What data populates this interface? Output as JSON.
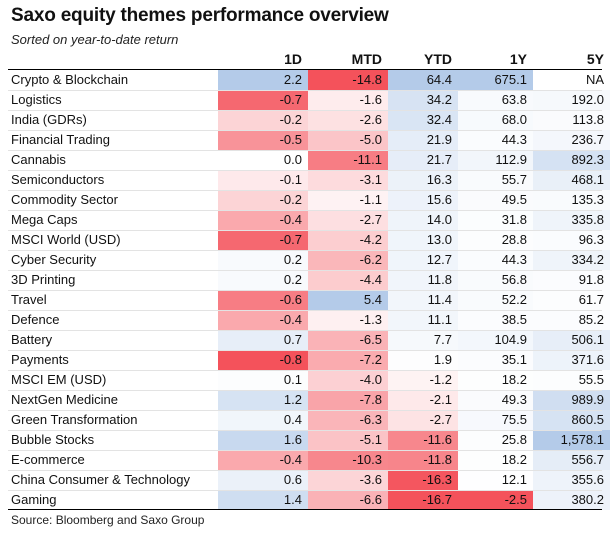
{
  "chart_data": {
    "type": "table",
    "title": "Saxo equity themes performance overview",
    "subtitle": "Sorted on year-to-date return",
    "columns": [
      "1D",
      "MTD",
      "YTD",
      "1Y",
      "5Y"
    ],
    "rows": [
      {
        "name": "Crypto & Blockchain",
        "values": [
          "2.2",
          "-14.8",
          "64.4",
          "675.1",
          "NA"
        ]
      },
      {
        "name": "Logistics",
        "values": [
          "-0.7",
          "-1.6",
          "34.2",
          "63.8",
          "192.0"
        ]
      },
      {
        "name": "India (GDRs)",
        "values": [
          "-0.2",
          "-2.6",
          "32.4",
          "68.0",
          "113.8"
        ]
      },
      {
        "name": "Financial Trading",
        "values": [
          "-0.5",
          "-5.0",
          "21.9",
          "44.3",
          "236.7"
        ]
      },
      {
        "name": "Cannabis",
        "values": [
          "0.0",
          "-11.1",
          "21.7",
          "112.9",
          "892.3"
        ]
      },
      {
        "name": "Semiconductors",
        "values": [
          "-0.1",
          "-3.1",
          "16.3",
          "55.7",
          "468.1"
        ]
      },
      {
        "name": "Commodity Sector",
        "values": [
          "-0.2",
          "-1.1",
          "15.6",
          "49.5",
          "135.3"
        ]
      },
      {
        "name": "Mega Caps",
        "values": [
          "-0.4",
          "-2.7",
          "14.0",
          "31.8",
          "335.8"
        ]
      },
      {
        "name": "MSCI World (USD)",
        "values": [
          "-0.7",
          "-4.2",
          "13.0",
          "28.8",
          "96.3"
        ]
      },
      {
        "name": "Cyber Security",
        "values": [
          "0.2",
          "-6.2",
          "12.7",
          "44.3",
          "334.2"
        ]
      },
      {
        "name": "3D Printing",
        "values": [
          "0.2",
          "-4.4",
          "11.8",
          "56.8",
          "91.8"
        ]
      },
      {
        "name": "Travel",
        "values": [
          "-0.6",
          "5.4",
          "11.4",
          "52.2",
          "61.7"
        ]
      },
      {
        "name": "Defence",
        "values": [
          "-0.4",
          "-1.3",
          "11.1",
          "38.5",
          "85.2"
        ]
      },
      {
        "name": "Battery",
        "values": [
          "0.7",
          "-6.5",
          "7.7",
          "104.9",
          "506.1"
        ]
      },
      {
        "name": "Payments",
        "values": [
          "-0.8",
          "-7.2",
          "1.9",
          "35.1",
          "371.6"
        ]
      },
      {
        "name": "MSCI EM (USD)",
        "values": [
          "0.1",
          "-4.0",
          "-1.2",
          "18.2",
          "55.5"
        ]
      },
      {
        "name": "NextGen Medicine",
        "values": [
          "1.2",
          "-7.8",
          "-2.1",
          "49.3",
          "989.9"
        ]
      },
      {
        "name": "Green Transformation",
        "values": [
          "0.4",
          "-6.3",
          "-2.7",
          "75.5",
          "860.5"
        ]
      },
      {
        "name": "Bubble Stocks",
        "values": [
          "1.6",
          "-5.1",
          "-11.6",
          "25.8",
          "1,578.1"
        ]
      },
      {
        "name": "E-commerce",
        "values": [
          "-0.4",
          "-10.3",
          "-11.8",
          "18.2",
          "556.7"
        ]
      },
      {
        "name": "China Consumer & Technology",
        "values": [
          "0.6",
          "-3.6",
          "-16.3",
          "12.1",
          "355.6"
        ]
      },
      {
        "name": "Gaming",
        "values": [
          "1.4",
          "-6.6",
          "-16.7",
          "-2.5",
          "380.2"
        ]
      }
    ],
    "colors": {
      "positive": "#b4cbe9",
      "negative": "#f4525b",
      "neutral": "#ffffff"
    },
    "source": "Source: Bloomberg and Saxo Group"
  }
}
